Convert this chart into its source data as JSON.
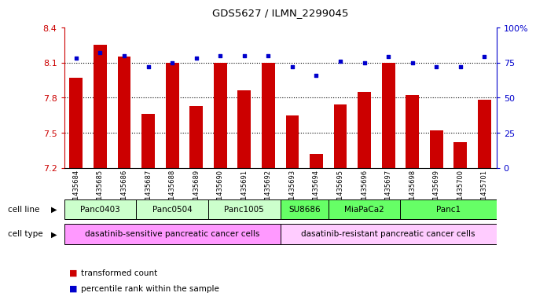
{
  "title": "GDS5627 / ILMN_2299045",
  "samples": [
    "GSM1435684",
    "GSM1435685",
    "GSM1435686",
    "GSM1435687",
    "GSM1435688",
    "GSM1435689",
    "GSM1435690",
    "GSM1435691",
    "GSM1435692",
    "GSM1435693",
    "GSM1435694",
    "GSM1435695",
    "GSM1435696",
    "GSM1435697",
    "GSM1435698",
    "GSM1435699",
    "GSM1435700",
    "GSM1435701"
  ],
  "bar_values": [
    7.97,
    8.25,
    8.15,
    7.66,
    8.1,
    7.73,
    8.1,
    7.86,
    8.1,
    7.65,
    7.32,
    7.74,
    7.85,
    8.1,
    7.82,
    7.52,
    7.42,
    7.78
  ],
  "percentile_values": [
    78,
    82,
    80,
    72,
    75,
    78,
    80,
    80,
    80,
    72,
    66,
    76,
    75,
    79,
    75,
    72,
    72,
    79
  ],
  "ylim_left": [
    7.2,
    8.4
  ],
  "ylim_right": [
    0,
    100
  ],
  "yticks_left": [
    7.2,
    7.5,
    7.8,
    8.1,
    8.4
  ],
  "yticks_right": [
    0,
    25,
    50,
    75,
    100
  ],
  "ytick_labels_left": [
    "7.2",
    "7.5",
    "7.8",
    "8.1",
    "8.4"
  ],
  "ytick_labels_right": [
    "0",
    "25",
    "50",
    "75",
    "100%"
  ],
  "bar_color": "#CC0000",
  "dot_color": "#0000CC",
  "dotted_line_y": [
    7.5,
    7.8,
    8.1
  ],
  "cell_lines": [
    {
      "label": "Panc0403",
      "start": 0,
      "end": 3,
      "color": "#ccffcc"
    },
    {
      "label": "Panc0504",
      "start": 3,
      "end": 6,
      "color": "#ccffcc"
    },
    {
      "label": "Panc1005",
      "start": 6,
      "end": 9,
      "color": "#ccffcc"
    },
    {
      "label": "SU8686",
      "start": 9,
      "end": 11,
      "color": "#66ff66"
    },
    {
      "label": "MiaPaCa2",
      "start": 11,
      "end": 14,
      "color": "#66ff66"
    },
    {
      "label": "Panc1",
      "start": 14,
      "end": 18,
      "color": "#66ff66"
    }
  ],
  "cell_types": [
    {
      "label": "dasatinib-sensitive pancreatic cancer cells",
      "start": 0,
      "end": 9,
      "color": "#ff99ff"
    },
    {
      "label": "dasatinib-resistant pancreatic cancer cells",
      "start": 9,
      "end": 18,
      "color": "#ffccff"
    }
  ],
  "bar_width": 0.55,
  "left_axis_color": "#CC0000",
  "right_axis_color": "#0000CC",
  "background_color": "#ffffff"
}
